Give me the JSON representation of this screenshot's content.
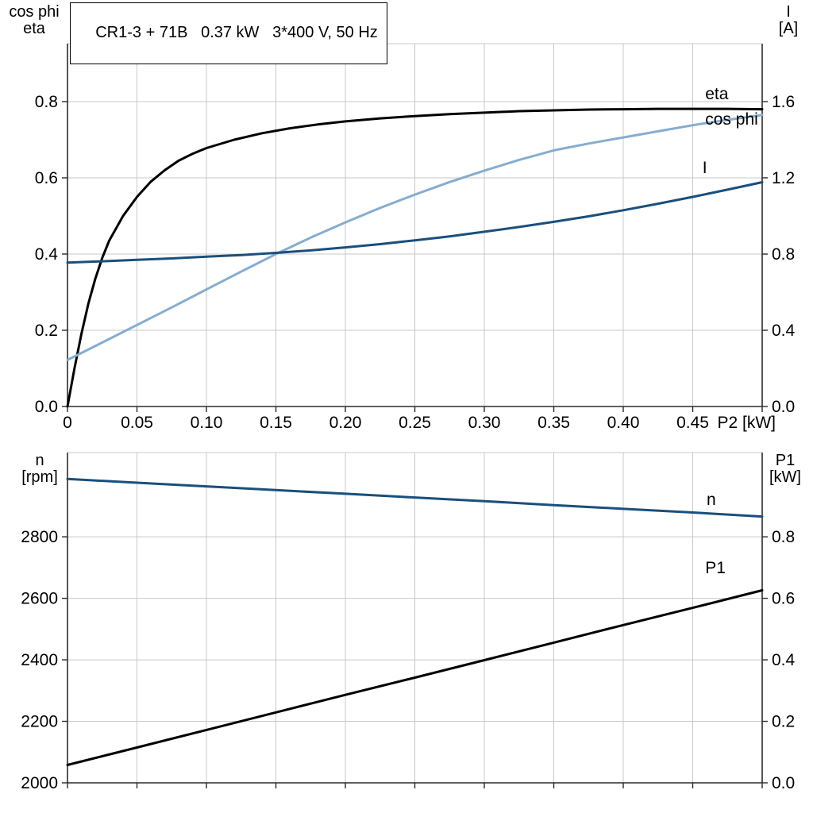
{
  "colors": {
    "grid": "#c8c8c8",
    "axis": "#2b2b2b",
    "black_curve": "#000000",
    "light_blue": "#85add0",
    "dark_blue": "#1a4f7c"
  },
  "chart_data": [
    {
      "type": "line",
      "title": "CR1-3 + 71B   0.37 kW   3*400 V, 50 Hz",
      "x": {
        "min": 0,
        "max": 0.5,
        "ticks": [
          0,
          0.05,
          0.1,
          0.15,
          0.2,
          0.25,
          0.3,
          0.35,
          0.4,
          0.45,
          0.5
        ],
        "tick_labels": [
          "0",
          "0.05",
          "0.10",
          "0.15",
          "0.20",
          "0.25",
          "0.30",
          "0.35",
          "0.40",
          "0.45",
          ""
        ],
        "end_label": "P2 [kW]"
      },
      "y_left": {
        "name_lines": [
          "cos phi",
          "eta"
        ],
        "min": 0,
        "max": 0.952,
        "ticks": [
          0.0,
          0.2,
          0.4,
          0.6,
          0.8
        ],
        "tick_labels": [
          "0.0",
          "0.2",
          "0.4",
          "0.6",
          "0.8"
        ]
      },
      "y_right": {
        "name_lines": [
          "I",
          "[A]"
        ],
        "min": 0,
        "max": 1.904,
        "ticks": [
          0.0,
          0.4,
          0.8,
          1.2,
          1.6
        ],
        "tick_labels": [
          "0.0",
          "0.4",
          "0.8",
          "1.2",
          "1.6"
        ]
      },
      "series": [
        {
          "name": "eta",
          "label": "eta",
          "axis": "left",
          "color": "#000000",
          "label_pos": [
            0.459,
            0.806
          ],
          "points": [
            [
              0,
              0
            ],
            [
              0.005,
              0.1
            ],
            [
              0.01,
              0.19
            ],
            [
              0.015,
              0.27
            ],
            [
              0.02,
              0.335
            ],
            [
              0.025,
              0.39
            ],
            [
              0.03,
              0.435
            ],
            [
              0.04,
              0.5
            ],
            [
              0.05,
              0.55
            ],
            [
              0.06,
              0.59
            ],
            [
              0.07,
              0.62
            ],
            [
              0.08,
              0.645
            ],
            [
              0.09,
              0.663
            ],
            [
              0.1,
              0.678
            ],
            [
              0.12,
              0.7
            ],
            [
              0.14,
              0.717
            ],
            [
              0.16,
              0.73
            ],
            [
              0.18,
              0.74
            ],
            [
              0.2,
              0.748
            ],
            [
              0.225,
              0.756
            ],
            [
              0.25,
              0.762
            ],
            [
              0.275,
              0.767
            ],
            [
              0.3,
              0.771
            ],
            [
              0.325,
              0.775
            ],
            [
              0.35,
              0.777
            ],
            [
              0.375,
              0.779
            ],
            [
              0.4,
              0.78
            ],
            [
              0.425,
              0.781
            ],
            [
              0.45,
              0.781
            ],
            [
              0.475,
              0.781
            ],
            [
              0.5,
              0.78
            ]
          ]
        },
        {
          "name": "cos phi",
          "label": "cos phi",
          "axis": "left",
          "color": "#85add0",
          "label_pos": [
            0.459,
            0.74
          ],
          "points": [
            [
              0,
              0.122
            ],
            [
              0.025,
              0.168
            ],
            [
              0.05,
              0.214
            ],
            [
              0.075,
              0.26
            ],
            [
              0.1,
              0.307
            ],
            [
              0.125,
              0.354
            ],
            [
              0.15,
              0.4
            ],
            [
              0.175,
              0.443
            ],
            [
              0.2,
              0.483
            ],
            [
              0.225,
              0.521
            ],
            [
              0.25,
              0.556
            ],
            [
              0.275,
              0.589
            ],
            [
              0.3,
              0.619
            ],
            [
              0.325,
              0.647
            ],
            [
              0.35,
              0.672
            ],
            [
              0.375,
              0.69
            ],
            [
              0.4,
              0.706
            ],
            [
              0.425,
              0.722
            ],
            [
              0.45,
              0.738
            ],
            [
              0.475,
              0.752
            ],
            [
              0.5,
              0.765
            ]
          ]
        },
        {
          "name": "I",
          "label": "I",
          "axis": "right",
          "color": "#1a4f7c",
          "label_pos": [
            0.457,
            1.225
          ],
          "points": [
            [
              0,
              0.755
            ],
            [
              0.025,
              0.762
            ],
            [
              0.05,
              0.77
            ],
            [
              0.075,
              0.777
            ],
            [
              0.1,
              0.786
            ],
            [
              0.125,
              0.795
            ],
            [
              0.15,
              0.806
            ],
            [
              0.175,
              0.819
            ],
            [
              0.2,
              0.835
            ],
            [
              0.225,
              0.852
            ],
            [
              0.25,
              0.872
            ],
            [
              0.275,
              0.893
            ],
            [
              0.3,
              0.917
            ],
            [
              0.325,
              0.942
            ],
            [
              0.35,
              0.969
            ],
            [
              0.375,
              0.998
            ],
            [
              0.4,
              1.03
            ],
            [
              0.425,
              1.064
            ],
            [
              0.45,
              1.1
            ],
            [
              0.475,
              1.138
            ],
            [
              0.5,
              1.177
            ]
          ]
        }
      ]
    },
    {
      "type": "line",
      "title": "",
      "x": {
        "min": 0,
        "max": 0.5,
        "ticks": [
          0,
          0.05,
          0.1,
          0.15,
          0.2,
          0.25,
          0.3,
          0.35,
          0.4,
          0.45,
          0.5
        ],
        "tick_labels": [
          "",
          "",
          "",
          "",
          "",
          "",
          "",
          "",
          "",
          "",
          ""
        ],
        "end_label": ""
      },
      "y_left": {
        "name_lines": [
          "n",
          "[rpm]"
        ],
        "min": 2000,
        "max": 3074,
        "ticks": [
          2000,
          2200,
          2400,
          2600,
          2800
        ],
        "tick_labels": [
          "2000",
          "2200",
          "2400",
          "2600",
          "2800"
        ]
      },
      "y_right": {
        "name_lines": [
          "P1",
          "[kW]"
        ],
        "min": 0,
        "max": 1.074,
        "ticks": [
          0.0,
          0.2,
          0.4,
          0.6,
          0.8
        ],
        "tick_labels": [
          "0.0",
          "0.2",
          "0.4",
          "0.6",
          "0.8"
        ]
      },
      "series": [
        {
          "name": "n",
          "label": "n",
          "axis": "left",
          "color": "#1a4f7c",
          "label_pos": [
            0.46,
            2904
          ],
          "points": [
            [
              0,
              2988
            ],
            [
              0.05,
              2976
            ],
            [
              0.1,
              2964
            ],
            [
              0.15,
              2952
            ],
            [
              0.2,
              2940
            ],
            [
              0.25,
              2928
            ],
            [
              0.3,
              2916
            ],
            [
              0.35,
              2903
            ],
            [
              0.4,
              2891
            ],
            [
              0.45,
              2879
            ],
            [
              0.5,
              2866
            ]
          ]
        },
        {
          "name": "P1",
          "label": "P1",
          "axis": "right",
          "color": "#000000",
          "label_pos": [
            0.459,
            0.682
          ],
          "points": [
            [
              0,
              0.058
            ],
            [
              0.05,
              0.115
            ],
            [
              0.1,
              0.172
            ],
            [
              0.15,
              0.229
            ],
            [
              0.2,
              0.286
            ],
            [
              0.25,
              0.342
            ],
            [
              0.3,
              0.399
            ],
            [
              0.35,
              0.456
            ],
            [
              0.4,
              0.513
            ],
            [
              0.45,
              0.569
            ],
            [
              0.5,
              0.626
            ]
          ]
        }
      ]
    }
  ]
}
